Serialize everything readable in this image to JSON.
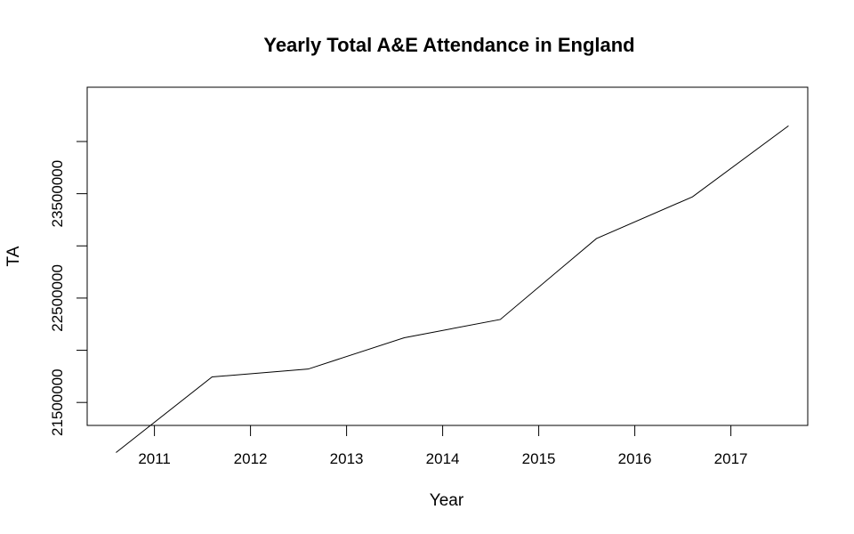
{
  "chart_data": {
    "type": "line",
    "title": "Yearly Total A&E Attendance in England",
    "xlabel": "Year",
    "ylabel": "TA",
    "x_ticks": [
      "2011",
      "2012",
      "2013",
      "2014",
      "2015",
      "2016",
      "2017"
    ],
    "x_tick_values": [
      2011,
      2012,
      2013,
      2014,
      2015,
      2016,
      2017
    ],
    "y_ticks": [
      "21500000",
      "22500000",
      "23500000"
    ],
    "y_tick_values": [
      21500000,
      22500000,
      23500000
    ],
    "y_minor_ticks": [
      22000000,
      23000000,
      24000000
    ],
    "xlim": [
      2010.3,
      2017.8
    ],
    "ylim": [
      21280000,
      24520000
    ],
    "grid": false,
    "legend": "none",
    "line_color": "#000000",
    "series": [
      {
        "x": [
          2010.6,
          2011.6,
          2012.6,
          2013.6,
          2014.6,
          2015.6,
          2016.6,
          2017.6
        ],
        "values": [
          21020000,
          21745000,
          21820000,
          22120000,
          22295000,
          23070000,
          23470000,
          24150000
        ]
      }
    ]
  }
}
